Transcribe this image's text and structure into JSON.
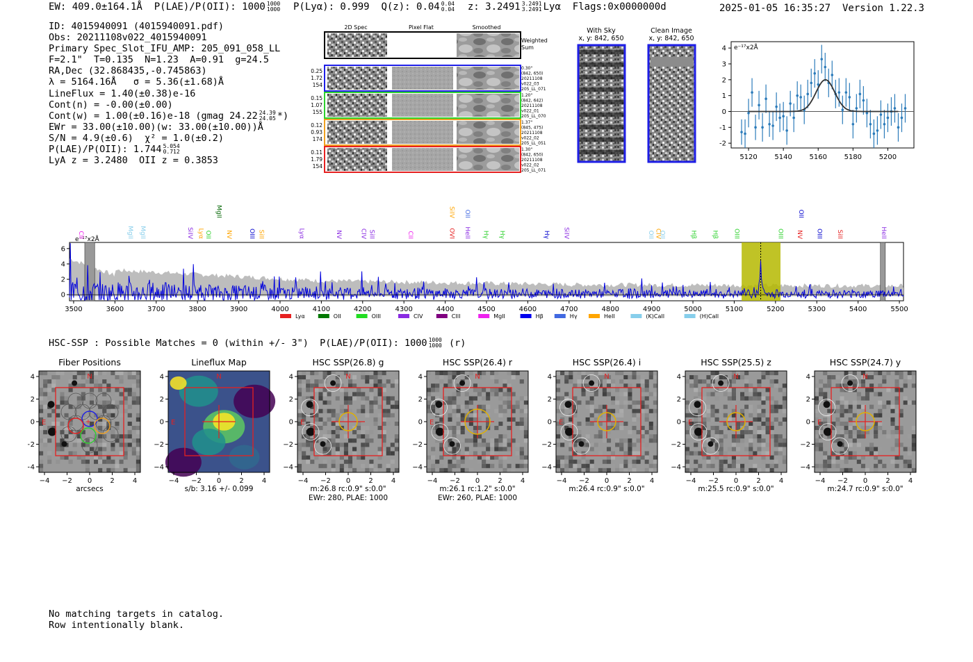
{
  "header": {
    "ew": "EW: 409.0±164.1Å",
    "plae_label": "P(LAE)/P(OII): 1000",
    "plae_hi": "1000",
    "plae_lo": "1000",
    "plya": "P(Lyα): 0.999",
    "qz_label": "Q(z): 0.04",
    "qz_hi": "0.04",
    "qz_lo": "0.04",
    "z_label": "z: 3.2491",
    "z_hi": "3.2491",
    "z_lo": "3.2491",
    "z_line": "Lyα",
    "flags": "Flags:0x0000000d",
    "timestamp": "2025-01-05 16:35:27",
    "version": "Version 1.22.3"
  },
  "info": {
    "id": "ID: 4015940091 (4015940091.pdf)",
    "obs": "Obs: 20211108v022_4015940091",
    "primary": "Primary Spec_Slot_IFU_AMP: 205_091_058_LL",
    "fwhm": "F=2.1\"  T=0.135  N=1.23  A=0.91  g=24.5",
    "radec": "RA,Dec (32.868435,-0.745863)",
    "lambda": "λ = 5164.16Å   σ = 5.36(±1.68)Å",
    "lineflux": "LineFlux = 1.40(±0.38)e-16",
    "contn": "Cont(n) = -0.00(±0.00)",
    "contw": "Cont(w) = 1.00(±0.16)e-18 (gmag 24.22",
    "contw_hi": "24.39",
    "contw_lo": "24.05",
    "contw_end": "*)",
    "ewr": "EWr = 33.00(±10.00)(w: 33.00(±10.00))Å",
    "sn": "S/N = 4.9(±0.6)  χ² = 1.0(±0.2)",
    "plae": "P(LAE)/P(OII): 1.744",
    "plae_hi": "5.054",
    "plae_lo": "0.712",
    "z": "LyA z = 3.2480  OII z = 0.3853"
  },
  "cutouts": {
    "col_labels": [
      "2D Spec",
      "Pixel Flat",
      "Smoothed"
    ],
    "weighted": "Weighted Sum",
    "rows": [
      {
        "left": [
          "0.25",
          "1.72",
          "154"
        ],
        "right": [
          "0.30\"",
          "(842, 650)",
          "20211108",
          "v022_03",
          "205_LL_071"
        ],
        "color": "#1e1ee6"
      },
      {
        "left": [
          "0.15",
          "1.07",
          "155"
        ],
        "right": [
          "1.20\"",
          "(842, 642)",
          "20211108",
          "v022_01",
          "205_LL_070"
        ],
        "color": "#2ed12e"
      },
      {
        "left": [
          "0.12",
          "0.93",
          "174"
        ],
        "right": [
          "1.37\"",
          "(845, 475)",
          "20211108",
          "v022_02",
          "205_LL_051"
        ],
        "color": "#f0a020"
      },
      {
        "left": [
          "0.11",
          "1.79",
          "154"
        ],
        "right": [
          "1.30\"",
          "(842, 650)",
          "20211108",
          "v022_02",
          "205_LL_071"
        ],
        "color": "#e62020"
      }
    ],
    "with_sky_title": "With Sky",
    "with_sky_sub": "x, y: 842, 650",
    "clean_title": "Clean Image",
    "clean_sub": "x, y: 842, 650"
  },
  "chart_data": [
    {
      "type": "scatter",
      "name": "line-fit",
      "title": "",
      "unit_label": "e⁻¹⁷x2Å",
      "xlim": [
        5110,
        5215
      ],
      "ylim": [
        -2.3,
        4.4
      ],
      "xticks": [
        5120,
        5140,
        5160,
        5180,
        5200
      ],
      "yticks": [
        -2,
        -1,
        0,
        1,
        2,
        3,
        4
      ],
      "points": [
        {
          "x": 5116,
          "y": -1.3,
          "e": 0.8
        },
        {
          "x": 5118,
          "y": -1.4,
          "e": 0.9
        },
        {
          "x": 5120,
          "y": -0.1,
          "e": 0.9
        },
        {
          "x": 5122,
          "y": 1.2,
          "e": 0.9
        },
        {
          "x": 5124,
          "y": -1.0,
          "e": 0.8
        },
        {
          "x": 5126,
          "y": 0.4,
          "e": 0.9
        },
        {
          "x": 5128,
          "y": -1.0,
          "e": 0.9
        },
        {
          "x": 5130,
          "y": 0.8,
          "e": 0.9
        },
        {
          "x": 5132,
          "y": -0.8,
          "e": 0.8
        },
        {
          "x": 5134,
          "y": -0.9,
          "e": 0.9
        },
        {
          "x": 5136,
          "y": 0.3,
          "e": 0.9
        },
        {
          "x": 5138,
          "y": -0.4,
          "e": 0.9
        },
        {
          "x": 5140,
          "y": -0.3,
          "e": 0.9
        },
        {
          "x": 5142,
          "y": -1.2,
          "e": 0.9
        },
        {
          "x": 5144,
          "y": 0.5,
          "e": 0.8
        },
        {
          "x": 5146,
          "y": -0.4,
          "e": 0.9
        },
        {
          "x": 5148,
          "y": 1.0,
          "e": 0.9
        },
        {
          "x": 5150,
          "y": 0.9,
          "e": 0.8
        },
        {
          "x": 5152,
          "y": 0.1,
          "e": 0.9
        },
        {
          "x": 5154,
          "y": 1.1,
          "e": 0.9
        },
        {
          "x": 5156,
          "y": 1.8,
          "e": 0.9
        },
        {
          "x": 5158,
          "y": 2.4,
          "e": 0.9
        },
        {
          "x": 5160,
          "y": 1.7,
          "e": 0.9
        },
        {
          "x": 5162,
          "y": 3.3,
          "e": 0.9
        },
        {
          "x": 5164,
          "y": 2.8,
          "e": 0.9
        },
        {
          "x": 5166,
          "y": 1.8,
          "e": 0.9
        },
        {
          "x": 5168,
          "y": 2.3,
          "e": 0.9
        },
        {
          "x": 5170,
          "y": 1.1,
          "e": 0.9
        },
        {
          "x": 5172,
          "y": 1.2,
          "e": 0.9
        },
        {
          "x": 5174,
          "y": 0.1,
          "e": 0.9
        },
        {
          "x": 5176,
          "y": 1.2,
          "e": 0.9
        },
        {
          "x": 5178,
          "y": 0.9,
          "e": 0.9
        },
        {
          "x": 5180,
          "y": -0.8,
          "e": 0.9
        },
        {
          "x": 5182,
          "y": 0.2,
          "e": 0.9
        },
        {
          "x": 5184,
          "y": 1.1,
          "e": 0.9
        },
        {
          "x": 5186,
          "y": 0.7,
          "e": 0.9
        },
        {
          "x": 5188,
          "y": -0.1,
          "e": 0.9
        },
        {
          "x": 5190,
          "y": -0.8,
          "e": 0.9
        },
        {
          "x": 5192,
          "y": -1.4,
          "e": 0.9
        },
        {
          "x": 5194,
          "y": -1.2,
          "e": 0.9
        },
        {
          "x": 5196,
          "y": -0.2,
          "e": 0.9
        },
        {
          "x": 5198,
          "y": -0.8,
          "e": 0.9
        },
        {
          "x": 5200,
          "y": -0.4,
          "e": 0.9
        },
        {
          "x": 5202,
          "y": 0.0,
          "e": 0.9
        },
        {
          "x": 5204,
          "y": 0.2,
          "e": 0.9
        },
        {
          "x": 5206,
          "y": -1.0,
          "e": 0.9
        },
        {
          "x": 5208,
          "y": -0.4,
          "e": 0.9
        },
        {
          "x": 5210,
          "y": 0.2,
          "e": 0.9
        }
      ],
      "model": {
        "center": 5164.16,
        "sigma": 5.36,
        "amp": 2.0,
        "xrange": [
          5120,
          5206
        ]
      }
    },
    {
      "type": "line",
      "name": "full-spectrum",
      "unit_label": "e⁻¹⁷x2Å",
      "xlim": [
        3490,
        5510
      ],
      "ylim": [
        -0.8,
        6.8
      ],
      "xticks": [
        3500,
        3600,
        3700,
        3800,
        3900,
        4000,
        4100,
        4200,
        4300,
        4400,
        4500,
        4600,
        4700,
        4800,
        4900,
        5000,
        5100,
        5200,
        5300,
        5400,
        5500
      ],
      "yticks": [
        0,
        2,
        4,
        6
      ],
      "highlight": [
        5118,
        5212
      ],
      "peak": 5164.16,
      "masked": [
        [
          3527,
          3551
        ],
        [
          5454,
          5466
        ]
      ],
      "emission_lines": [
        {
          "label": "CII",
          "w": 3518,
          "color": "#ee22ee",
          "row": 1
        },
        {
          "label": "MgII",
          "w": 3637,
          "color": "#87ceeb",
          "row": 1
        },
        {
          "label": "MgII",
          "w": 3668,
          "color": "#87ceeb",
          "row": 1
        },
        {
          "label": "SiIV",
          "w": 3782,
          "color": "#8a2be2",
          "row": 1
        },
        {
          "label": "Lyα",
          "w": 3808,
          "color": "#ffa500",
          "row": 1
        },
        {
          "label": "OII",
          "w": 3826,
          "color": "#2ed12e",
          "row": 1
        },
        {
          "label": "MgII",
          "w": 3852,
          "color": "#006400",
          "row": 0
        },
        {
          "label": "NV",
          "w": 3876,
          "color": "#ffa500",
          "row": 1
        },
        {
          "label": "OIII",
          "w": 3932,
          "color": "#0000cd",
          "row": 1
        },
        {
          "label": "SiII",
          "w": 3955,
          "color": "#ffa500",
          "row": 1
        },
        {
          "label": "Lyα",
          "w": 4052,
          "color": "#8a2be2",
          "row": 1
        },
        {
          "label": "NV",
          "w": 4142,
          "color": "#8a2be2",
          "row": 1
        },
        {
          "label": "CIV",
          "w": 4202,
          "color": "#8a2be2",
          "row": 1
        },
        {
          "label": "SiII",
          "w": 4222,
          "color": "#8a2be2",
          "row": 1
        },
        {
          "label": "CII",
          "w": 4316,
          "color": "#ee22ee",
          "row": 1
        },
        {
          "label": "SiIV",
          "w": 4416,
          "color": "#ffa500",
          "row": 0
        },
        {
          "label": "OVI",
          "w": 4416,
          "color": "#e62020",
          "row": 1
        },
        {
          "label": "OII",
          "w": 4454,
          "color": "#4169e1",
          "row": 0
        },
        {
          "label": "HeII",
          "w": 4454,
          "color": "#8a2be2",
          "row": 1
        },
        {
          "label": "Hγ",
          "w": 4498,
          "color": "#2ed12e",
          "row": 1
        },
        {
          "label": "Hγ",
          "w": 4538,
          "color": "#2ed12e",
          "row": 1
        },
        {
          "label": "Hγ",
          "w": 4646,
          "color": "#0000cd",
          "row": 1
        },
        {
          "label": "SiIV",
          "w": 4694,
          "color": "#8a2be2",
          "row": 1
        },
        {
          "label": "OII",
          "w": 4898,
          "color": "#87ceeb",
          "row": 1
        },
        {
          "label": "CIV",
          "w": 4916,
          "color": "#ffa500",
          "row": 1
        },
        {
          "label": "OII",
          "w": 4926,
          "color": "#87ceeb",
          "row": 1
        },
        {
          "label": "Hβ",
          "w": 5002,
          "color": "#2ed12e",
          "row": 1
        },
        {
          "label": "Hβ",
          "w": 5054,
          "color": "#2ed12e",
          "row": 1
        },
        {
          "label": "OIII",
          "w": 5106,
          "color": "#2ed12e",
          "row": 1
        },
        {
          "label": "OIII",
          "w": 5212,
          "color": "#2ed12e",
          "row": 1
        },
        {
          "label": "NV",
          "w": 5258,
          "color": "#e62020",
          "row": 1
        },
        {
          "label": "OII",
          "w": 5262,
          "color": "#0000cd",
          "row": 0
        },
        {
          "label": "OIII",
          "w": 5306,
          "color": "#0000cd",
          "row": 1
        },
        {
          "label": "SiII",
          "w": 5356,
          "color": "#e62020",
          "row": 1
        },
        {
          "label": "HeII",
          "w": 5462,
          "color": "#8a2be2",
          "row": 1
        }
      ],
      "legend": [
        {
          "label": "Lyα",
          "color": "#e62020"
        },
        {
          "label": "OII",
          "color": "#007700"
        },
        {
          "label": "OIII",
          "color": "#22dd22"
        },
        {
          "label": "CIV",
          "color": "#8a2be2"
        },
        {
          "label": "CIII",
          "color": "#800080"
        },
        {
          "label": "MgII",
          "color": "#ee22ee"
        },
        {
          "label": "Hβ",
          "color": "#0000ee"
        },
        {
          "label": "Hγ",
          "color": "#4169e1"
        },
        {
          "label": "HeII",
          "color": "#ffa500"
        },
        {
          "label": "(K)CaII",
          "color": "#87ceeb"
        },
        {
          "label": "(H)CaII",
          "color": "#87ceeb"
        }
      ]
    }
  ],
  "hsc": {
    "title": "HSC-SSP : Possible Matches = 0 (within +/- 3\")  P(LAE)/P(OII): 1000",
    "title_hi": "1000",
    "title_lo": "1000",
    "title_end": "(r)",
    "axis_ticks": [
      "-4",
      "-2",
      "0",
      "2",
      "4"
    ],
    "panels": [
      {
        "title": "Fiber Positions",
        "caption1": "arcsecs",
        "caption2": "",
        "kind": "fiber"
      },
      {
        "title": "Lineflux Map",
        "caption1": "s/b: 3.16 +/- 0.099",
        "caption2": "",
        "kind": "flux"
      },
      {
        "title": "HSC SSP(26.8) g",
        "caption1": "m:26.8 rc:0.9\"  s:0.0\"",
        "caption2": "EWr: 280, PLAE: 1000",
        "kind": "sky"
      },
      {
        "title": "HSC SSP(26.4) r",
        "caption1": "m:26.1 rc:1.2\"  s:0.0\"",
        "caption2": "EWr: 260, PLAE: 1000",
        "kind": "sky"
      },
      {
        "title": "HSC SSP(26.4) i",
        "caption1": "m:26.4 rc:0.9\"  s:0.0\"",
        "caption2": "",
        "kind": "sky"
      },
      {
        "title": "HSC SSP(25.5) z",
        "caption1": "m:25.5 rc:0.9\"  s:0.0\"",
        "caption2": "",
        "kind": "sky"
      },
      {
        "title": "HSC SSP(24.7) y",
        "caption1": "m:24.7 rc:0.9\"  s:0.0\"",
        "caption2": "",
        "kind": "sky"
      }
    ],
    "north": "N",
    "east": "E"
  },
  "notes": {
    "line1": "No matching targets in catalog.",
    "line2": "Row intentionally blank."
  }
}
